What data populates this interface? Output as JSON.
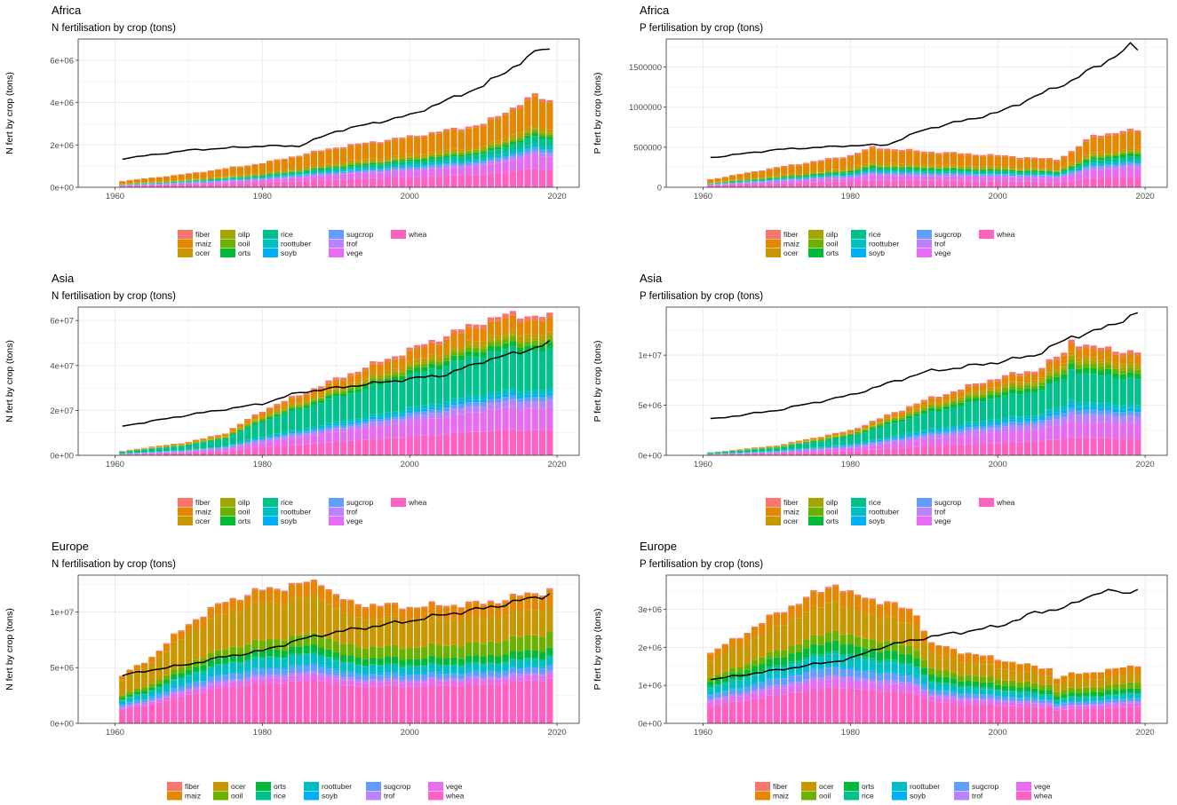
{
  "crops": [
    {
      "key": "fiber",
      "label": "fiber",
      "color": "#F8766D"
    },
    {
      "key": "maiz",
      "label": "maiz",
      "color": "#E58700"
    },
    {
      "key": "ocer",
      "label": "ocer",
      "color": "#C99800"
    },
    {
      "key": "oilp",
      "label": "oilp",
      "color": "#A3A500"
    },
    {
      "key": "ooil",
      "label": "ooil",
      "color": "#6BB100"
    },
    {
      "key": "orts",
      "label": "orts",
      "color": "#00BA38"
    },
    {
      "key": "rice",
      "label": "rice",
      "color": "#00C08B"
    },
    {
      "key": "roottuber",
      "label": "roottuber",
      "color": "#00BFC4"
    },
    {
      "key": "soyb",
      "label": "soyb",
      "color": "#00B0F6"
    },
    {
      "key": "sugcrop",
      "label": "sugcrop",
      "color": "#619CFF"
    },
    {
      "key": "trof",
      "label": "trof",
      "color": "#B983FF"
    },
    {
      "key": "vege",
      "label": "vege",
      "color": "#E76BF3"
    },
    {
      "key": "whea",
      "label": "whea",
      "color": "#FF61C3"
    }
  ],
  "chart_data": [
    {
      "id": "africa-n",
      "type": "bar",
      "region": "Africa",
      "title": "Africa",
      "subtitle": "N fertilisation by crop (tons)",
      "xlabel": "",
      "ylabel": "N fert by crop (tons)",
      "x_range": [
        1961,
        2019
      ],
      "xticks": [
        1960,
        1980,
        2000,
        2020
      ],
      "ylim": [
        0,
        7000000
      ],
      "yticks": [
        0,
        2000000,
        4000000,
        6000000
      ],
      "ytick_labels": [
        "0e+00",
        "2e+06",
        "4e+06",
        "6e+06"
      ],
      "legend_layout": "wide",
      "totals_keyframes": [
        [
          1961,
          300000
        ],
        [
          1970,
          650000
        ],
        [
          1980,
          1150000
        ],
        [
          1990,
          1900000
        ],
        [
          2000,
          2400000
        ],
        [
          2010,
          3000000
        ],
        [
          2017,
          4350000
        ],
        [
          2019,
          4100000
        ]
      ],
      "share_keyframes": [
        {
          "year": 1961,
          "shares": {
            "fiber": 0.04,
            "maiz": 0.4,
            "ocer": 0.07,
            "oilp": 0.02,
            "ooil": 0.03,
            "orts": 0.02,
            "rice": 0.04,
            "roottuber": 0.03,
            "soyb": 0.01,
            "sugcrop": 0.04,
            "trof": 0.03,
            "vege": 0.08,
            "whea": 0.19
          }
        },
        {
          "year": 2019,
          "shares": {
            "fiber": 0.03,
            "maiz": 0.3,
            "ocer": 0.04,
            "oilp": 0.02,
            "ooil": 0.03,
            "orts": 0.03,
            "rice": 0.08,
            "roottuber": 0.04,
            "soyb": 0.01,
            "sugcrop": 0.03,
            "trof": 0.04,
            "vege": 0.15,
            "whea": 0.2
          }
        }
      ],
      "line_keyframes": [
        [
          1961,
          1350000
        ],
        [
          1970,
          1750000
        ],
        [
          1980,
          1950000
        ],
        [
          1985,
          1950000
        ],
        [
          1990,
          2650000
        ],
        [
          2000,
          3400000
        ],
        [
          2010,
          4800000
        ],
        [
          2015,
          5900000
        ],
        [
          2018,
          6550000
        ],
        [
          2019,
          6500000
        ]
      ]
    },
    {
      "id": "africa-p",
      "type": "bar",
      "region": "Africa",
      "title": "Africa",
      "subtitle": "P fertilisation by crop (tons)",
      "xlabel": "",
      "ylabel": "P fert by crop (tons)",
      "x_range": [
        1961,
        2019
      ],
      "xticks": [
        1960,
        1980,
        2000,
        2020
      ],
      "ylim": [
        0,
        1850000
      ],
      "yticks": [
        0,
        500000,
        1000000,
        1500000
      ],
      "ytick_labels": [
        "0",
        "500000",
        "1000000",
        "1500000"
      ],
      "legend_layout": "wide",
      "totals_keyframes": [
        [
          1961,
          100000
        ],
        [
          1970,
          250000
        ],
        [
          1980,
          400000
        ],
        [
          1983,
          500000
        ],
        [
          1990,
          450000
        ],
        [
          2000,
          400000
        ],
        [
          2008,
          350000
        ],
        [
          2010,
          450000
        ],
        [
          2013,
          650000
        ],
        [
          2019,
          720000
        ]
      ],
      "share_keyframes": [
        {
          "year": 1961,
          "shares": {
            "fiber": 0.05,
            "maiz": 0.35,
            "ocer": 0.08,
            "oilp": 0.02,
            "ooil": 0.04,
            "orts": 0.03,
            "rice": 0.04,
            "roottuber": 0.03,
            "soyb": 0.01,
            "sugcrop": 0.04,
            "trof": 0.04,
            "vege": 0.09,
            "whea": 0.18
          }
        },
        {
          "year": 2019,
          "shares": {
            "fiber": 0.04,
            "maiz": 0.28,
            "ocer": 0.05,
            "oilp": 0.02,
            "ooil": 0.03,
            "orts": 0.04,
            "rice": 0.07,
            "roottuber": 0.04,
            "soyb": 0.01,
            "sugcrop": 0.03,
            "trof": 0.05,
            "vege": 0.16,
            "whea": 0.18
          }
        }
      ],
      "line_keyframes": [
        [
          1961,
          370000
        ],
        [
          1970,
          470000
        ],
        [
          1980,
          520000
        ],
        [
          1985,
          530000
        ],
        [
          1990,
          720000
        ],
        [
          2000,
          930000
        ],
        [
          2010,
          1330000
        ],
        [
          2015,
          1590000
        ],
        [
          2018,
          1760000
        ],
        [
          2019,
          1720000
        ]
      ]
    },
    {
      "id": "asia-n",
      "type": "bar",
      "region": "Asia",
      "title": "Asia",
      "subtitle": "N fertilisation by crop (tons)",
      "xlabel": "",
      "ylabel": "N fert by crop (tons)",
      "x_range": [
        1961,
        2019
      ],
      "xticks": [
        1960,
        1980,
        2000,
        2020
      ],
      "ylim": [
        0,
        66000000
      ],
      "yticks": [
        0,
        20000000,
        40000000,
        60000000
      ],
      "ytick_labels": [
        "0e+00",
        "2e+07",
        "4e+07",
        "6e+07"
      ],
      "legend_layout": "wide",
      "totals_keyframes": [
        [
          1961,
          2000000
        ],
        [
          1970,
          6000000
        ],
        [
          1975,
          10000000
        ],
        [
          1980,
          20000000
        ],
        [
          1990,
          34000000
        ],
        [
          2000,
          47000000
        ],
        [
          2010,
          60000000
        ],
        [
          2014,
          63000000
        ],
        [
          2019,
          61500000
        ]
      ],
      "share_keyframes": [
        {
          "year": 1961,
          "shares": {
            "fiber": 0.03,
            "maiz": 0.08,
            "ocer": 0.04,
            "oilp": 0.02,
            "ooil": 0.03,
            "orts": 0.04,
            "rice": 0.36,
            "roottuber": 0.04,
            "soyb": 0.02,
            "sugcrop": 0.03,
            "trof": 0.04,
            "vege": 0.1,
            "whea": 0.17
          }
        },
        {
          "year": 2019,
          "shares": {
            "fiber": 0.03,
            "maiz": 0.1,
            "ocer": 0.03,
            "oilp": 0.02,
            "ooil": 0.03,
            "orts": 0.04,
            "rice": 0.28,
            "roottuber": 0.03,
            "soyb": 0.02,
            "sugcrop": 0.03,
            "trof": 0.05,
            "vege": 0.16,
            "whea": 0.18
          }
        }
      ],
      "line_keyframes": [
        [
          1961,
          13000000
        ],
        [
          1970,
          18000000
        ],
        [
          1980,
          23000000
        ],
        [
          1985,
          28000000
        ],
        [
          1990,
          30000000
        ],
        [
          2000,
          34000000
        ],
        [
          2005,
          36000000
        ],
        [
          2010,
          42000000
        ],
        [
          2015,
          46000000
        ],
        [
          2019,
          50000000
        ]
      ]
    },
    {
      "id": "asia-p",
      "type": "bar",
      "region": "Asia",
      "title": "Asia",
      "subtitle": "P fertilisation by crop (tons)",
      "xlabel": "",
      "ylabel": "P fert by crop (tons)",
      "x_range": [
        1961,
        2019
      ],
      "xticks": [
        1960,
        1980,
        2000,
        2020
      ],
      "ylim": [
        0,
        14800000
      ],
      "yticks": [
        0,
        5000000,
        10000000
      ],
      "ytick_labels": [
        "0e+00",
        "5e+06",
        "1e+07"
      ],
      "legend_layout": "wide",
      "totals_keyframes": [
        [
          1961,
          300000
        ],
        [
          1970,
          1000000
        ],
        [
          1980,
          2500000
        ],
        [
          1990,
          5500000
        ],
        [
          2000,
          7800000
        ],
        [
          2005,
          8500000
        ],
        [
          2009,
          10200000
        ],
        [
          2010,
          11500000
        ],
        [
          2013,
          10800000
        ],
        [
          2019,
          10300000
        ]
      ],
      "share_keyframes": [
        {
          "year": 1961,
          "shares": {
            "fiber": 0.03,
            "maiz": 0.07,
            "ocer": 0.03,
            "oilp": 0.02,
            "ooil": 0.04,
            "orts": 0.05,
            "rice": 0.33,
            "roottuber": 0.04,
            "soyb": 0.03,
            "sugcrop": 0.04,
            "trof": 0.05,
            "vege": 0.11,
            "whea": 0.16
          }
        },
        {
          "year": 2019,
          "shares": {
            "fiber": 0.03,
            "maiz": 0.08,
            "ocer": 0.03,
            "oilp": 0.03,
            "ooil": 0.04,
            "orts": 0.05,
            "rice": 0.25,
            "roottuber": 0.04,
            "soyb": 0.03,
            "sugcrop": 0.04,
            "trof": 0.07,
            "vege": 0.15,
            "whea": 0.16
          }
        }
      ],
      "line_keyframes": [
        [
          1961,
          3600000
        ],
        [
          1970,
          4500000
        ],
        [
          1980,
          6000000
        ],
        [
          1990,
          8300000
        ],
        [
          2000,
          9300000
        ],
        [
          2005,
          10000000
        ],
        [
          2010,
          11800000
        ],
        [
          2015,
          12800000
        ],
        [
          2019,
          14300000
        ]
      ]
    },
    {
      "id": "europe-n",
      "type": "bar",
      "region": "Europe",
      "title": "Europe",
      "subtitle": "N fertilisation by crop (tons)",
      "xlabel": "",
      "ylabel": "N fert by crop (tons)",
      "x_range": [
        1961,
        2019
      ],
      "xticks": [
        1960,
        1980,
        2000,
        2020
      ],
      "ylim": [
        0,
        13300000
      ],
      "yticks": [
        0,
        5000000,
        10000000
      ],
      "ytick_labels": [
        "0e+00",
        "5e+06",
        "1e+07"
      ],
      "legend_layout": "narrow",
      "totals_keyframes": [
        [
          1961,
          4300000
        ],
        [
          1965,
          6000000
        ],
        [
          1970,
          9000000
        ],
        [
          1975,
          11000000
        ],
        [
          1980,
          12000000
        ],
        [
          1988,
          12800000
        ],
        [
          1990,
          11500000
        ],
        [
          1992,
          10800000
        ],
        [
          2000,
          10500000
        ],
        [
          2010,
          10800000
        ],
        [
          2019,
          12000000
        ]
      ],
      "share_keyframes": [
        {
          "year": 1961,
          "shares": {
            "fiber": 0.01,
            "maiz": 0.08,
            "ocer": 0.32,
            "oilp": 0.0,
            "ooil": 0.05,
            "orts": 0.05,
            "rice": 0.01,
            "roottuber": 0.08,
            "soyb": 0.01,
            "sugcrop": 0.05,
            "trof": 0.02,
            "vege": 0.04,
            "whea": 0.28
          }
        },
        {
          "year": 2019,
          "shares": {
            "fiber": 0.01,
            "maiz": 0.12,
            "ocer": 0.19,
            "oilp": 0.0,
            "ooil": 0.12,
            "orts": 0.06,
            "rice": 0.01,
            "roottuber": 0.05,
            "soyb": 0.01,
            "sugcrop": 0.04,
            "trof": 0.02,
            "vege": 0.04,
            "whea": 0.33
          }
        }
      ],
      "line_keyframes": [
        [
          1961,
          4300000
        ],
        [
          1965,
          4800000
        ],
        [
          1970,
          5300000
        ],
        [
          1975,
          6000000
        ],
        [
          1980,
          6500000
        ],
        [
          1985,
          7500000
        ],
        [
          1990,
          8200000
        ],
        [
          1995,
          8700000
        ],
        [
          2000,
          9200000
        ],
        [
          2005,
          9800000
        ],
        [
          2010,
          10300000
        ],
        [
          2015,
          11000000
        ],
        [
          2019,
          11600000
        ]
      ]
    },
    {
      "id": "europe-p",
      "type": "bar",
      "region": "Europe",
      "title": "Europe",
      "subtitle": "P fertilisation by crop (tons)",
      "xlabel": "",
      "ylabel": "P fert by crop (tons)",
      "x_range": [
        1961,
        2019
      ],
      "xticks": [
        1960,
        1980,
        2000,
        2020
      ],
      "ylim": [
        0,
        3900000
      ],
      "yticks": [
        0,
        1000000,
        2000000,
        3000000
      ],
      "ytick_labels": [
        "0e+00",
        "1e+06",
        "2e+06",
        "3e+06"
      ],
      "legend_layout": "narrow",
      "totals_keyframes": [
        [
          1961,
          1850000
        ],
        [
          1965,
          2300000
        ],
        [
          1970,
          2900000
        ],
        [
          1975,
          3400000
        ],
        [
          1978,
          3700000
        ],
        [
          1980,
          3400000
        ],
        [
          1985,
          3200000
        ],
        [
          1989,
          2900000
        ],
        [
          1991,
          2100000
        ],
        [
          1995,
          1900000
        ],
        [
          2000,
          1700000
        ],
        [
          2005,
          1500000
        ],
        [
          2007,
          1450000
        ],
        [
          2008,
          1200000
        ],
        [
          2010,
          1300000
        ],
        [
          2015,
          1400000
        ],
        [
          2019,
          1550000
        ]
      ],
      "share_keyframes": [
        {
          "year": 1961,
          "shares": {
            "fiber": 0.01,
            "maiz": 0.1,
            "ocer": 0.24,
            "oilp": 0.0,
            "ooil": 0.06,
            "orts": 0.07,
            "rice": 0.02,
            "roottuber": 0.09,
            "soyb": 0.01,
            "sugcrop": 0.06,
            "trof": 0.03,
            "vege": 0.06,
            "whea": 0.25
          }
        },
        {
          "year": 2019,
          "shares": {
            "fiber": 0.01,
            "maiz": 0.14,
            "ocer": 0.14,
            "oilp": 0.0,
            "ooil": 0.1,
            "orts": 0.08,
            "rice": 0.02,
            "roottuber": 0.07,
            "soyb": 0.01,
            "sugcrop": 0.05,
            "trof": 0.03,
            "vege": 0.06,
            "whea": 0.29
          }
        }
      ],
      "line_keyframes": [
        [
          1961,
          1150000
        ],
        [
          1970,
          1400000
        ],
        [
          1980,
          1700000
        ],
        [
          1984,
          2000000
        ],
        [
          1990,
          2250000
        ],
        [
          2000,
          2550000
        ],
        [
          2005,
          2900000
        ],
        [
          2010,
          3100000
        ],
        [
          2014,
          3500000
        ],
        [
          2018,
          3400000
        ],
        [
          2019,
          3600000
        ]
      ]
    }
  ]
}
